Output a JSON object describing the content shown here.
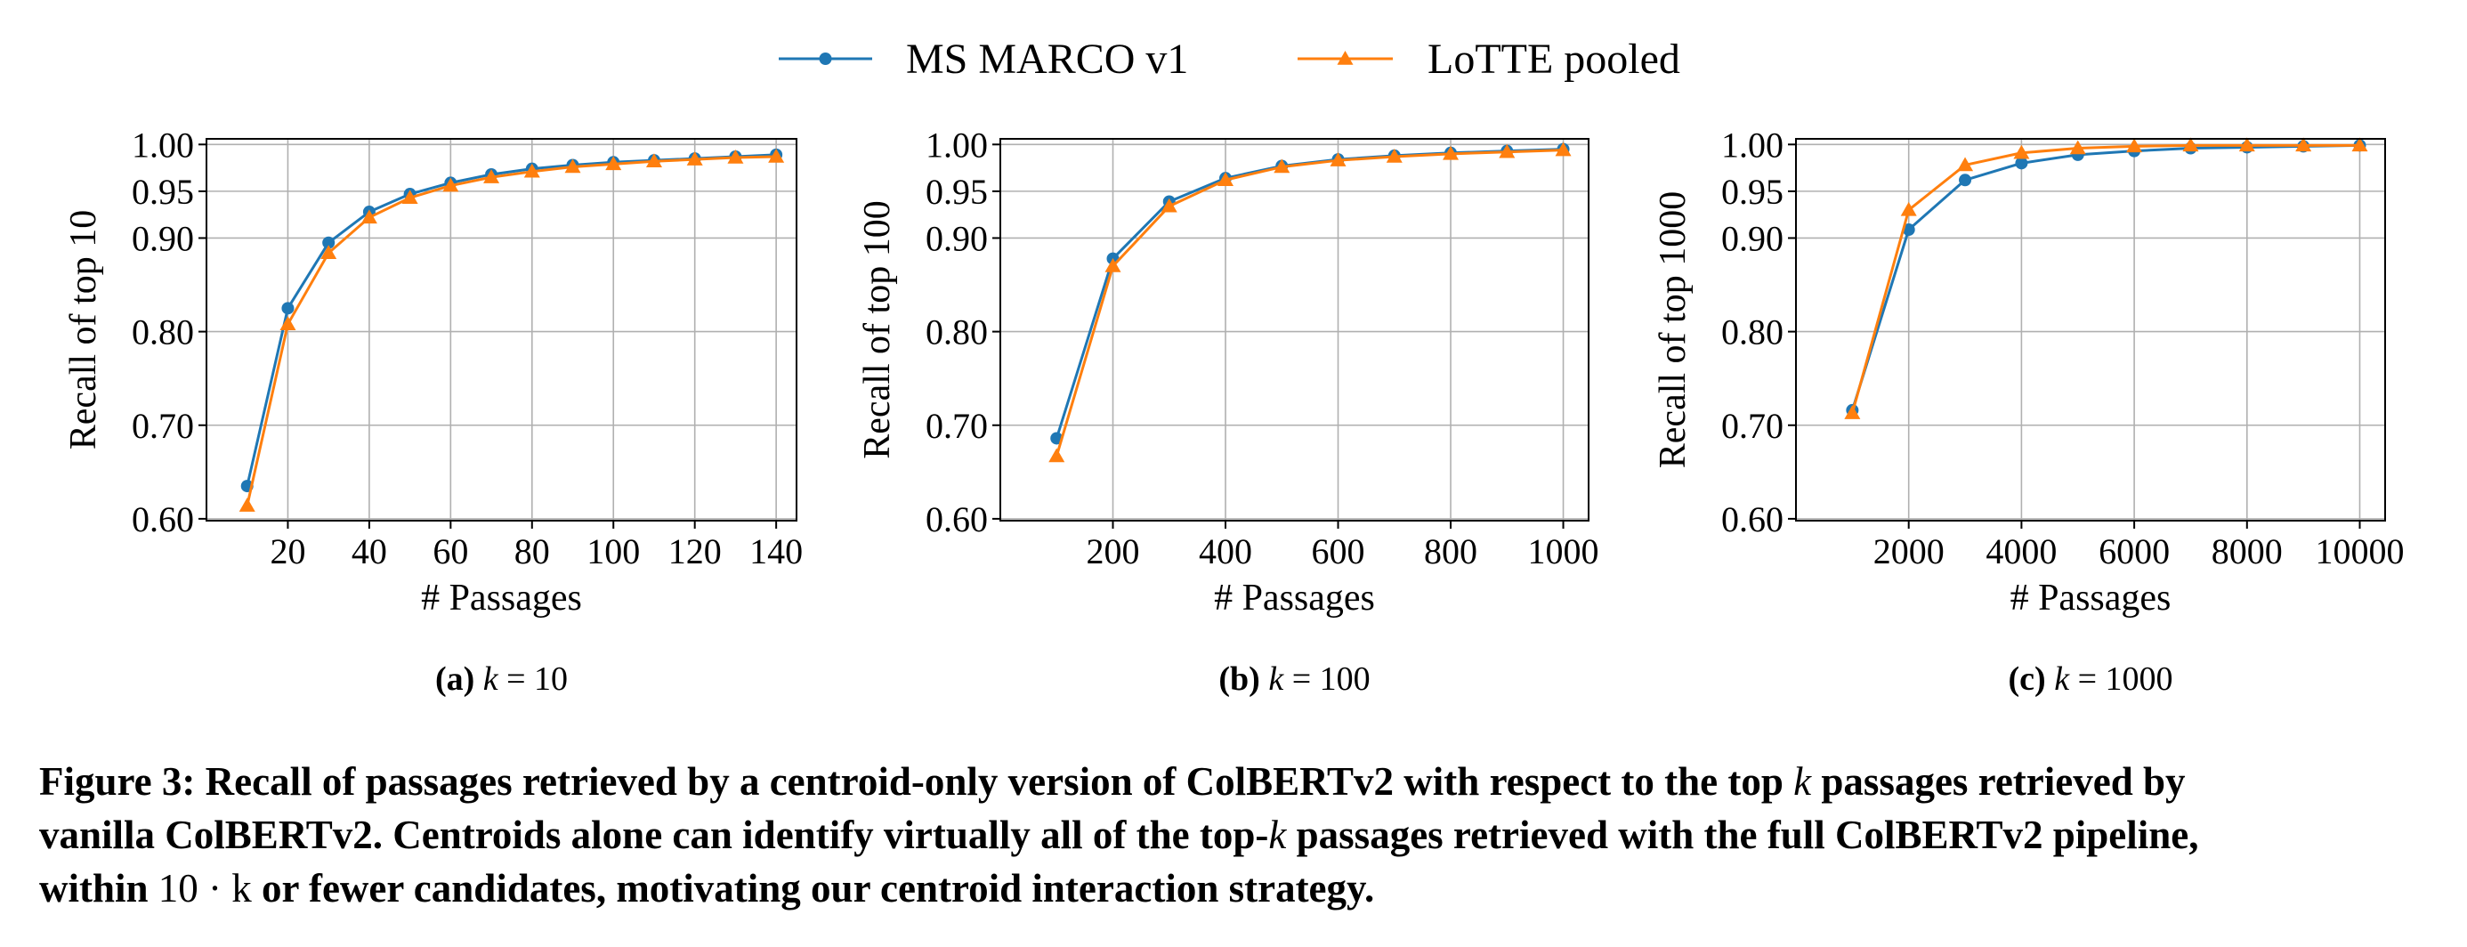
{
  "legend": [
    {
      "label": "MS MARCO v1",
      "color": "#1f77b4",
      "marker": "circle"
    },
    {
      "label": "LoTTE pooled",
      "color": "#ff7f0e",
      "marker": "triangle"
    }
  ],
  "chart_data": [
    {
      "type": "line",
      "subcaption": "(a) k = 10",
      "xlabel": "# Passages",
      "ylabel": "Recall of top 10",
      "xlim": [
        0,
        145
      ],
      "ylim": [
        0.598,
        1.006
      ],
      "xticks": [
        20,
        40,
        60,
        80,
        100,
        120,
        140
      ],
      "yticks": [
        0.6,
        0.7,
        0.8,
        0.9,
        0.95,
        1.0
      ],
      "ytick_labels": [
        "0.60",
        "0.70",
        "0.80",
        "0.90",
        "0.95",
        "1.00"
      ],
      "grid": true,
      "x": [
        10,
        20,
        30,
        40,
        50,
        60,
        70,
        80,
        90,
        100,
        110,
        120,
        130,
        140
      ],
      "series": [
        {
          "name": "MS MARCO v1",
          "values": [
            0.635,
            0.825,
            0.895,
            0.928,
            0.947,
            0.959,
            0.968,
            0.974,
            0.978,
            0.981,
            0.983,
            0.985,
            0.987,
            0.989
          ]
        },
        {
          "name": "LoTTE pooled",
          "values": [
            0.614,
            0.808,
            0.884,
            0.922,
            0.943,
            0.956,
            0.965,
            0.971,
            0.976,
            0.979,
            0.982,
            0.984,
            0.986,
            0.987
          ]
        }
      ]
    },
    {
      "type": "line",
      "subcaption": "(b) k = 100",
      "xlabel": "# Passages",
      "ylabel": "Recall of top 100",
      "xlim": [
        0,
        1045
      ],
      "ylim": [
        0.598,
        1.006
      ],
      "xticks": [
        200,
        400,
        600,
        800,
        1000
      ],
      "yticks": [
        0.6,
        0.7,
        0.8,
        0.9,
        0.95,
        1.0
      ],
      "ytick_labels": [
        "0.60",
        "0.70",
        "0.80",
        "0.90",
        "0.95",
        "1.00"
      ],
      "grid": true,
      "x": [
        100,
        200,
        300,
        400,
        500,
        600,
        700,
        800,
        900,
        1000
      ],
      "series": [
        {
          "name": "MS MARCO v1",
          "values": [
            0.686,
            0.878,
            0.939,
            0.964,
            0.977,
            0.984,
            0.988,
            0.991,
            0.993,
            0.995
          ]
        },
        {
          "name": "LoTTE pooled",
          "values": [
            0.667,
            0.87,
            0.934,
            0.962,
            0.976,
            0.983,
            0.987,
            0.99,
            0.992,
            0.994
          ]
        }
      ]
    },
    {
      "type": "line",
      "subcaption": "(c) k = 1000",
      "xlabel": "# Passages",
      "ylabel": "Recall of top 1000",
      "xlim": [
        0,
        10450
      ],
      "ylim": [
        0.598,
        1.006
      ],
      "xticks": [
        2000,
        4000,
        6000,
        8000,
        10000
      ],
      "yticks": [
        0.6,
        0.7,
        0.8,
        0.9,
        0.95,
        1.0
      ],
      "ytick_labels": [
        "0.60",
        "0.70",
        "0.80",
        "0.90",
        "0.95",
        "1.00"
      ],
      "grid": true,
      "x": [
        1000,
        2000,
        3000,
        4000,
        5000,
        6000,
        7000,
        8000,
        9000,
        10000
      ],
      "series": [
        {
          "name": "MS MARCO v1",
          "values": [
            0.716,
            0.909,
            0.962,
            0.98,
            0.989,
            0.993,
            0.996,
            0.997,
            0.998,
            0.999
          ]
        },
        {
          "name": "LoTTE pooled",
          "values": [
            0.713,
            0.93,
            0.978,
            0.991,
            0.996,
            0.998,
            0.999,
            0.999,
            0.999,
            0.999
          ]
        }
      ]
    }
  ],
  "caption": {
    "label": "Figure 3:",
    "line1_a": "Recall of passages retrieved by a centroid-only version of ColBERTv2 with respect to the top ",
    "line1_k": "k",
    "line1_b": " passages retrieved by",
    "line2_a": "vanilla ColBERTv2. Centroids alone can identify virtually all of the top-",
    "line2_k": "k",
    "line2_b": " passages retrieved with the full ColBERTv2 pipeline,",
    "line3_a": "within ",
    "line3_math": "10 · k",
    "line3_b": " or fewer candidates, motivating our centroid interaction strategy."
  }
}
